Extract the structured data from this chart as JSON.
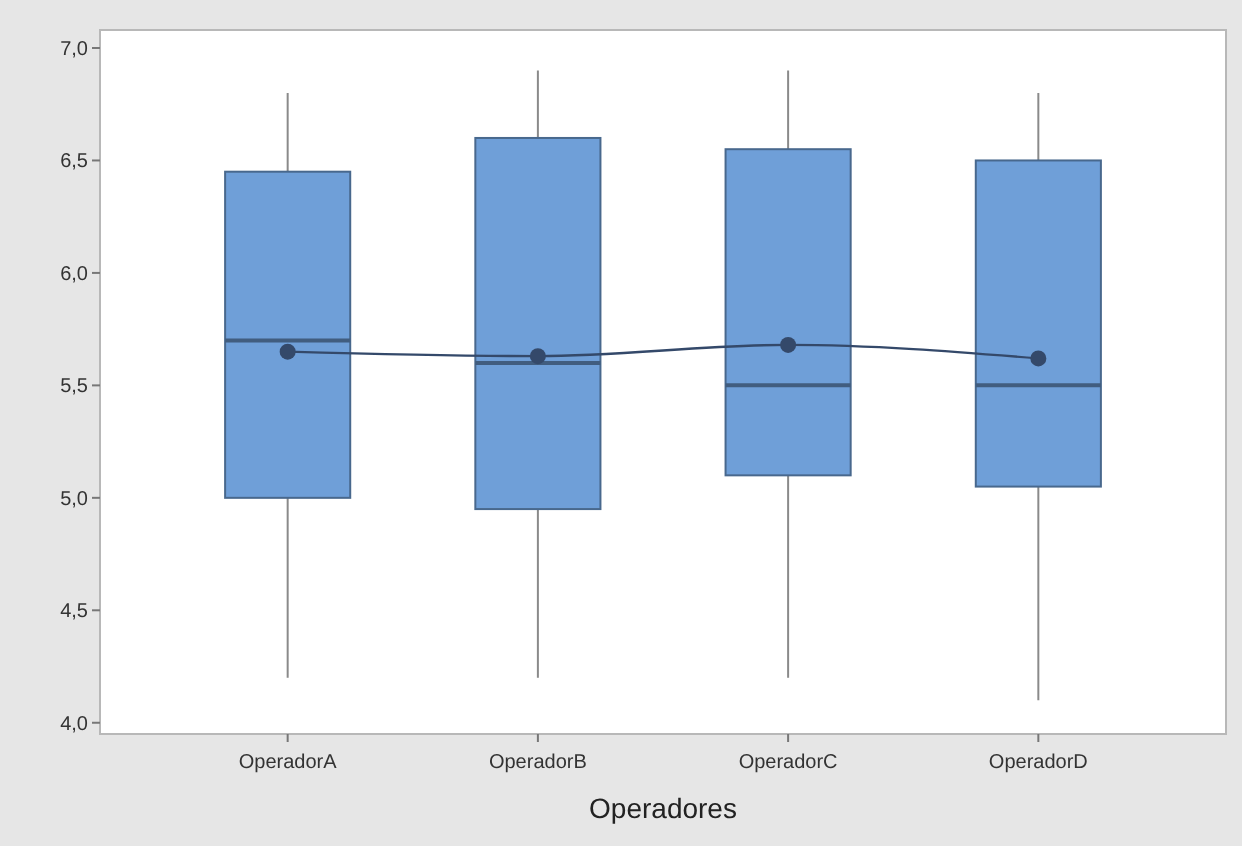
{
  "chart_data": {
    "type": "box",
    "xlabel": "Operadores",
    "categories": [
      "OperadorA",
      "OperadorB",
      "OperadorC",
      "OperadorD"
    ],
    "ylim": [
      3.95,
      7.08
    ],
    "yticks": [
      {
        "value": 4,
        "label": "4,0"
      },
      {
        "value": 4.5,
        "label": "4,5"
      },
      {
        "value": 5,
        "label": "5,0"
      },
      {
        "value": 5.5,
        "label": "5,5"
      },
      {
        "value": 6,
        "label": "6,0"
      },
      {
        "value": 6.5,
        "label": "6,5"
      },
      {
        "value": 7,
        "label": "7,0"
      }
    ],
    "grid": false,
    "series": [
      {
        "color": "#6f9fd8",
        "boxes": [
          {
            "low": 4.2,
            "q1": 5.0,
            "median": 5.7,
            "q3": 6.45,
            "high": 6.8
          },
          {
            "low": 4.2,
            "q1": 4.95,
            "median": 5.6,
            "q3": 6.6,
            "high": 6.9
          },
          {
            "low": 4.2,
            "q1": 5.1,
            "median": 5.5,
            "q3": 6.55,
            "high": 6.9
          },
          {
            "low": 4.1,
            "q1": 5.05,
            "median": 5.5,
            "q3": 6.5,
            "high": 6.8
          }
        ]
      },
      {
        "type": "line",
        "color": "#34496a",
        "marker": "circle",
        "values": [
          5.65,
          5.63,
          5.68,
          5.62
        ]
      }
    ]
  }
}
